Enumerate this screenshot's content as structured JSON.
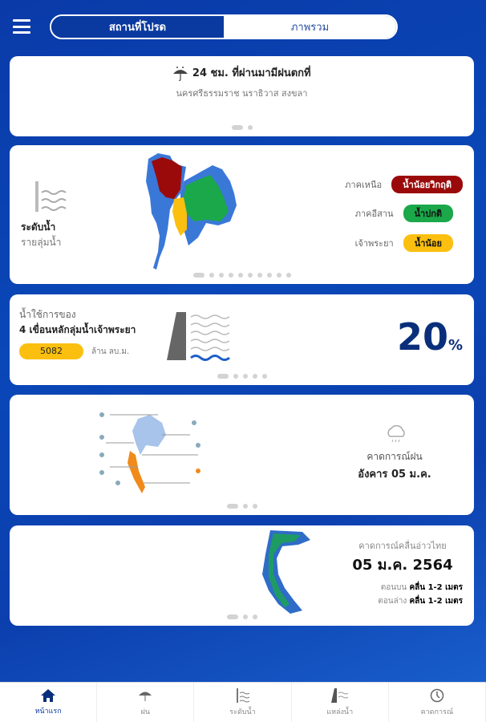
{
  "header": {
    "tabs": [
      {
        "label": "สถานที่โปรด",
        "active": true
      },
      {
        "label": "ภาพรวม",
        "active": false
      }
    ]
  },
  "rain_card": {
    "title": "24 ชม. ที่ผ่านมามีฝนตกที่",
    "places": "นครศรีธรรมราช นราธิวาส สงขลา",
    "icon": "rain-umbrella-24h-icon"
  },
  "water_level_card": {
    "title": "ระดับน้ำ",
    "subtitle": "รายลุ่มน้ำ",
    "regions": [
      {
        "name": "ภาคเหนือ",
        "status": "น้ำน้อยวิกฤติ",
        "color": "#9b0a0a",
        "text": "#fff"
      },
      {
        "name": "ภาคอีสาน",
        "status": "น้ำปกติ",
        "color": "#1aa84a",
        "text": "#111"
      },
      {
        "name": "เจ้าพระยา",
        "status": "น้ำน้อย",
        "color": "#fbbf0f",
        "text": "#111"
      }
    ]
  },
  "dam_card": {
    "line1": "น้ำใช้การของ",
    "line2": "4 เขื่อนหลักลุ่มน้ำเจ้าพระยา",
    "volume": "5082",
    "unit": "ล้าน ลบ.ม.",
    "percent": "20",
    "percent_sign": "%"
  },
  "rain_forecast_card": {
    "title": "คาดการณ์ฝน",
    "date": "อังคาร 05 ม.ค."
  },
  "wave_card": {
    "title": "คาดการณ์คลื่นอ่าวไทย",
    "date": "05 ม.ค. 2564",
    "upper_label": "ตอนบน",
    "upper_value": "คลื่น 1-2 เมตร",
    "lower_label": "ตอนล่าง",
    "lower_value": "คลื่น 1-2 เมตร"
  },
  "nav": [
    {
      "label": "หน้าแรก",
      "icon": "home-icon",
      "active": true
    },
    {
      "label": "ฝน",
      "icon": "rain-icon"
    },
    {
      "label": "ระดับน้ำ",
      "icon": "water-level-icon"
    },
    {
      "label": "แหล่งน้ำ",
      "icon": "dam-icon"
    },
    {
      "label": "คาดการณ์",
      "icon": "clock-icon"
    }
  ],
  "colors": {
    "primary": "#0a3aa0",
    "map_blue": "#3a78d8",
    "north": "#9b0a0a",
    "northeast": "#1aa84a",
    "central": "#fbbf0f"
  }
}
